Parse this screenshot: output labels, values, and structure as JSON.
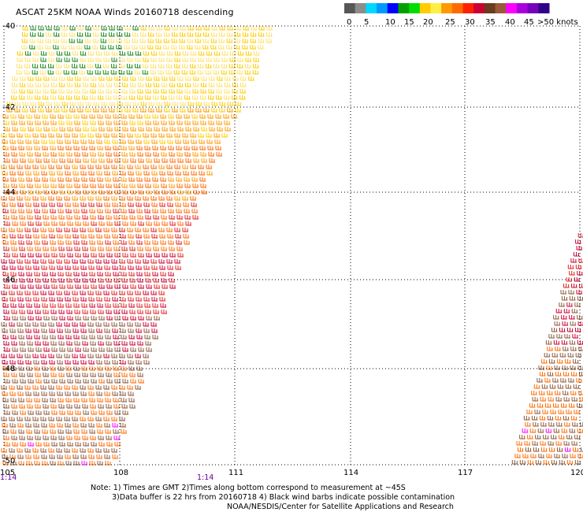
{
  "title": "ASCAT 25KM NOAA Winds 20160718 descending",
  "legend": {
    "ticks": [
      "0",
      "5",
      "10",
      "15",
      "20",
      "25",
      "30",
      "35",
      "40",
      "45",
      ">50 knots"
    ],
    "colors": [
      "#575757",
      "#8c8c8c",
      "#00d7ff",
      "#0099ff",
      "#0000ff",
      "#00a000",
      "#00dd00",
      "#ffcc00",
      "#ffee44",
      "#ff9900",
      "#ff6a00",
      "#ff2000",
      "#cc0033",
      "#6b3a1f",
      "#9a5a3a",
      "#ff00ff",
      "#aa00dd",
      "#7700bb",
      "#330088"
    ]
  },
  "axes": {
    "lon_labels": [
      "105",
      "108",
      "111",
      "114",
      "117",
      "120"
    ],
    "lat_labels": [
      "-40",
      "-42",
      "-44",
      "-46",
      "-48",
      "-50"
    ]
  },
  "time_labels": [
    "1:14",
    "1:14"
  ],
  "notes": {
    "line1": "Note:  1) Times are GMT  2)Times along bottom correspond to measurement at ~45S",
    "line2": "3)Data buffer is 22 hrs from 20160718  4) Black wind barbs indicate possible contamination",
    "line3": "NOAA/NESDIS/Center for Satellite Applications and Research"
  }
}
